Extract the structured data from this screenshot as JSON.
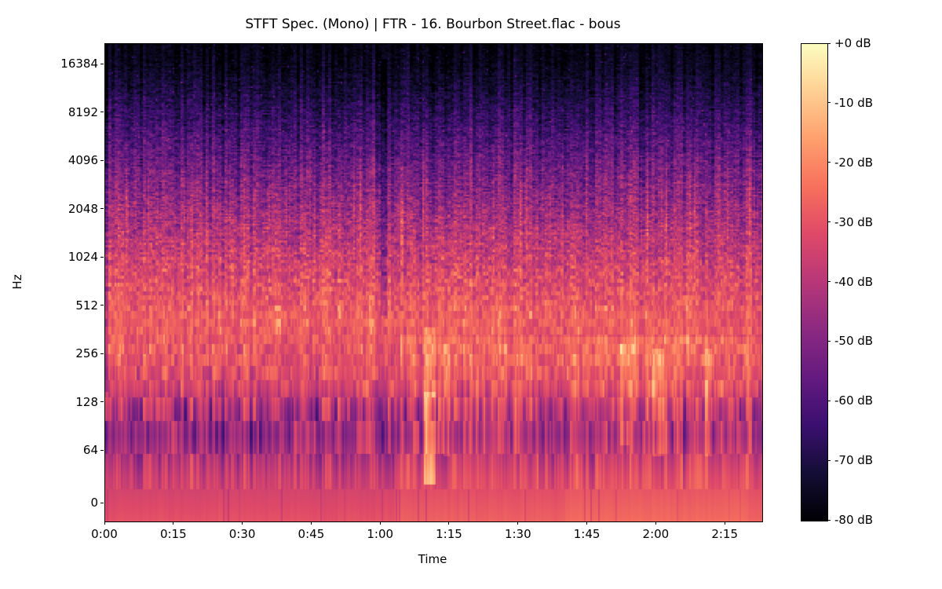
{
  "figure": {
    "background_color": "#ffffff",
    "text_color": "#000000",
    "spine_color": "#000000"
  },
  "chart_data": {
    "type": "heatmap",
    "subtype": "stft-log-spectrogram",
    "title": "STFT Spec. (Mono) | FTR - 16. Bourbon Street.flac - bous",
    "xlabel": "Time",
    "ylabel": "Hz",
    "grid": false,
    "x_axis": {
      "tick_labels": [
        "0:00",
        "0:15",
        "0:30",
        "0:45",
        "1:00",
        "1:15",
        "1:30",
        "1:45",
        "2:00",
        "2:15"
      ],
      "tick_seconds": [
        0,
        15,
        30,
        45,
        60,
        75,
        90,
        105,
        120,
        135
      ],
      "duration_seconds": 143
    },
    "y_axis": {
      "tick_labels": [
        "16384",
        "8192",
        "4096",
        "2048",
        "1024",
        "512",
        "256",
        "128",
        "64",
        "0"
      ],
      "tick_hz": [
        16384,
        8192,
        4096,
        2048,
        1024,
        512,
        256,
        128,
        64,
        0
      ],
      "scale": "log2",
      "top_hz": 22050
    },
    "colorbar": {
      "tick_labels": [
        "+0 dB",
        "-10 dB",
        "-20 dB",
        "-30 dB",
        "-40 dB",
        "-50 dB",
        "-60 dB",
        "-70 dB",
        "-80 dB"
      ],
      "tick_db": [
        0,
        -10,
        -20,
        -30,
        -40,
        -50,
        -60,
        -70,
        -80
      ],
      "db_min": -80,
      "db_max": 0,
      "colormap": "magma",
      "position": "right"
    },
    "colormap_stops": [
      "#000004",
      "#140e36",
      "#3b0f70",
      "#641a80",
      "#8c2981",
      "#b73779",
      "#de4968",
      "#f7705c",
      "#fe9f6d",
      "#fecf92",
      "#fcfdbf"
    ],
    "spectral_profile": {
      "comment": "Average spectral envelope read from the image: base dB level and stripe variance per frequency",
      "freq_hz": [
        23,
        45,
        80,
        120,
        160,
        220,
        300,
        420,
        600,
        900,
        1300,
        2000,
        3000,
        4800,
        7500,
        11000,
        16000,
        22050
      ],
      "base_db": [
        -30,
        -36,
        -46,
        -42,
        -34,
        -31,
        -29,
        -27,
        -30,
        -34,
        -39,
        -45,
        -51,
        -58,
        -65,
        -71,
        -76,
        -78
      ],
      "stripe_db": [
        1.2,
        6,
        11,
        10,
        8,
        7,
        6.5,
        6,
        7.5,
        8.5,
        9,
        9.5,
        9,
        8,
        7,
        5.5,
        4,
        3
      ]
    },
    "time_structure": {
      "bass_boost_after_s": 63,
      "bass_boost_db": 3,
      "late_boost_range_s": [
        100,
        140
      ],
      "late_boost_db": 2,
      "intro_dip_before_s": 0.6,
      "intro_dip_db": -12,
      "events": [
        {
          "type": "bright-burst",
          "t_start_s": 69.3,
          "t_end_s": 71.8,
          "f_low_hz": 40,
          "f_high_hz": 150,
          "gain_db": 20
        },
        {
          "type": "bright-burst",
          "t_start_s": 69.3,
          "t_end_s": 71.8,
          "f_low_hz": 150,
          "f_high_hz": 380,
          "gain_db": 8
        },
        {
          "type": "quiet-gap",
          "t_start_s": 59.8,
          "t_end_s": 61.2,
          "f_low_hz": 450,
          "f_high_hz": 18000,
          "gain_db": -9
        },
        {
          "type": "bright-burst",
          "t_start_s": 73.5,
          "t_end_s": 75.0,
          "f_low_hz": 60,
          "f_high_hz": 300,
          "gain_db": 9
        },
        {
          "type": "bright-burst",
          "t_start_s": 112.0,
          "t_end_s": 114.0,
          "f_low_hz": 70,
          "f_high_hz": 300,
          "gain_db": 9
        },
        {
          "type": "bright-burst",
          "t_start_s": 119.0,
          "t_end_s": 121.5,
          "f_low_hz": 60,
          "f_high_hz": 280,
          "gain_db": 10
        },
        {
          "type": "bright-burst",
          "t_start_s": 130.5,
          "t_end_s": 132.0,
          "f_low_hz": 60,
          "f_high_hz": 280,
          "gain_db": 8
        }
      ]
    },
    "render_seed": 20240613
  }
}
